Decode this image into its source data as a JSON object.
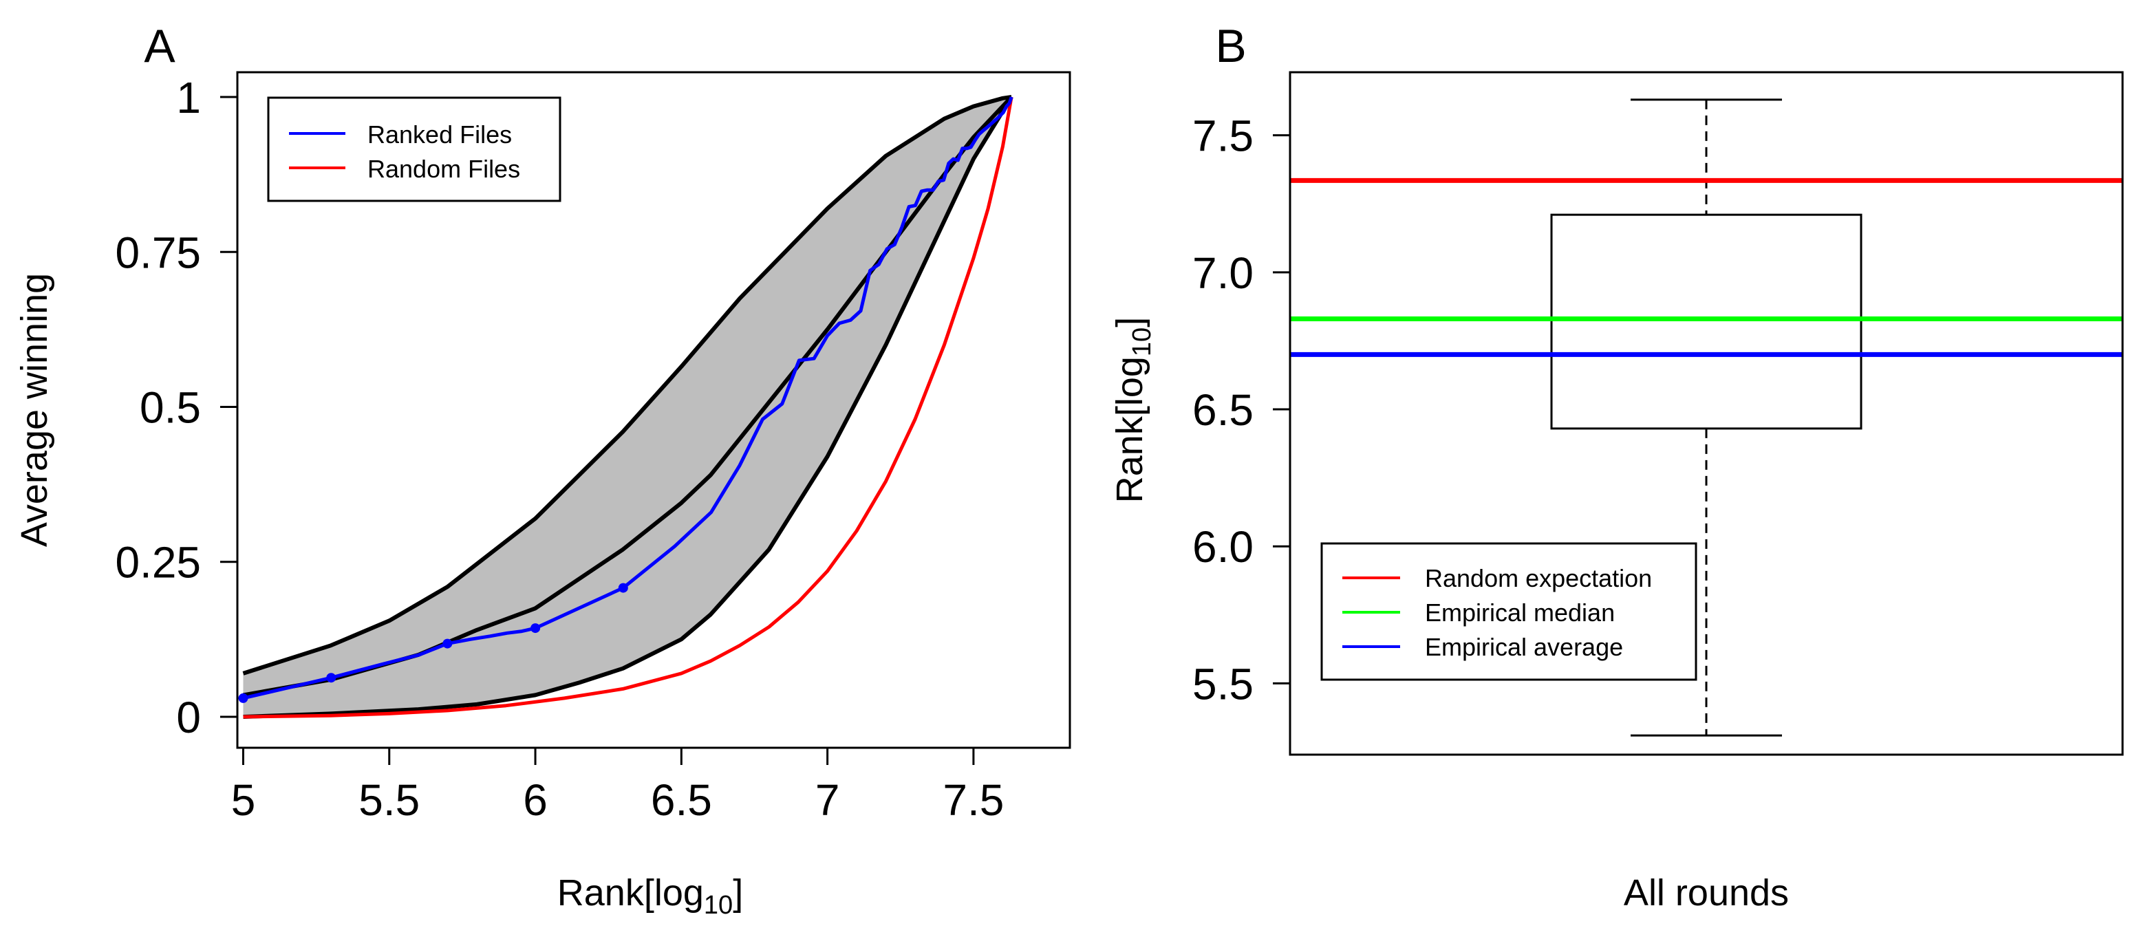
{
  "chart_data": [
    {
      "panel_label": "A",
      "type": "line",
      "xlabel": "Rank[log",
      "xlabel_sub": "10",
      "xlabel_close": "]",
      "ylabel": "Average winning",
      "xlim": [
        4.98,
        7.83
      ],
      "ylim": [
        -0.05,
        1.04
      ],
      "xticks": [
        5,
        5.5,
        6,
        6.5,
        7,
        7.5
      ],
      "xtick_labels": [
        "5",
        "5.5",
        "6",
        "6.5",
        "7",
        "7.5"
      ],
      "yticks": [
        0,
        0.25,
        0.5,
        0.75,
        1
      ],
      "ytick_labels": [
        "0",
        "0.25",
        "0.5",
        "0.75",
        "1"
      ],
      "legend": {
        "position": "top-left",
        "entries": [
          {
            "label": "Ranked Files",
            "color": "#0000ff"
          },
          {
            "label": "Random Files",
            "color": "#ff0000"
          }
        ]
      },
      "band": {
        "color": "#bebebe",
        "upper": {
          "x": [
            5.0,
            5.3,
            5.5,
            5.7,
            6.0,
            6.3,
            6.5,
            6.7,
            7.0,
            7.2,
            7.4,
            7.5,
            7.6,
            7.63
          ],
          "y": [
            0.07,
            0.115,
            0.155,
            0.21,
            0.32,
            0.46,
            0.565,
            0.675,
            0.82,
            0.905,
            0.965,
            0.985,
            0.998,
            1.0
          ]
        },
        "lower": {
          "x": [
            5.0,
            5.3,
            5.6,
            5.8,
            6.0,
            6.15,
            6.3,
            6.5,
            6.6,
            6.8,
            7.0,
            7.2,
            7.4,
            7.5,
            7.63
          ],
          "y": [
            0.0,
            0.005,
            0.012,
            0.02,
            0.035,
            0.055,
            0.078,
            0.125,
            0.165,
            0.27,
            0.42,
            0.6,
            0.8,
            0.9,
            1.0
          ]
        },
        "median": {
          "x": [
            5.0,
            5.3,
            5.6,
            5.8,
            6.0,
            6.3,
            6.5,
            6.6,
            7.0,
            7.2,
            7.4,
            7.5,
            7.63
          ],
          "y": [
            0.035,
            0.06,
            0.1,
            0.14,
            0.175,
            0.27,
            0.345,
            0.39,
            0.625,
            0.75,
            0.875,
            0.935,
            1.0
          ]
        }
      },
      "series": [
        {
          "name": "Ranked Files",
          "color": "#0000ff",
          "x": [
            5.0,
            5.301,
            5.477,
            5.602,
            5.699,
            5.778,
            5.845,
            5.903,
            5.954,
            6.0,
            6.301,
            6.477,
            6.602,
            6.699,
            6.778,
            6.845,
            6.903,
            6.954,
            7.0,
            7.041,
            7.079,
            7.114,
            7.146,
            7.176,
            7.204,
            7.23,
            7.255,
            7.279,
            7.301,
            7.322,
            7.342,
            7.362,
            7.38,
            7.398,
            7.415,
            7.431,
            7.447,
            7.462,
            7.477,
            7.491,
            7.505,
            7.519,
            7.531,
            7.544,
            7.556,
            7.568,
            7.58,
            7.591,
            7.602,
            7.613,
            7.623,
            7.63
          ],
          "y": [
            0.03,
            0.063,
            0.085,
            0.1,
            0.118,
            0.125,
            0.13,
            0.135,
            0.138,
            0.143,
            0.208,
            0.275,
            0.33,
            0.405,
            0.48,
            0.505,
            0.575,
            0.578,
            0.615,
            0.635,
            0.64,
            0.655,
            0.72,
            0.73,
            0.755,
            0.762,
            0.79,
            0.823,
            0.825,
            0.848,
            0.85,
            0.85,
            0.864,
            0.866,
            0.893,
            0.9,
            0.898,
            0.917,
            0.917,
            0.919,
            0.93,
            0.94,
            0.945,
            0.95,
            0.955,
            0.96,
            0.965,
            0.97,
            0.975,
            0.985,
            0.99,
            1.0
          ],
          "points_x": [
            5.0,
            5.301,
            5.699,
            6.0,
            6.301
          ],
          "points_y": [
            0.03,
            0.063,
            0.118,
            0.143,
            0.208
          ]
        },
        {
          "name": "Random Files",
          "color": "#ff0000",
          "x": [
            5.0,
            5.3,
            5.5,
            5.7,
            5.9,
            6.1,
            6.3,
            6.5,
            6.6,
            6.7,
            6.8,
            6.9,
            7.0,
            7.1,
            7.2,
            7.3,
            7.4,
            7.5,
            7.55,
            7.6,
            7.63
          ],
          "y": [
            0.0,
            0.002,
            0.005,
            0.01,
            0.018,
            0.03,
            0.045,
            0.07,
            0.09,
            0.115,
            0.145,
            0.185,
            0.235,
            0.3,
            0.38,
            0.48,
            0.6,
            0.74,
            0.82,
            0.92,
            1.0
          ]
        }
      ]
    },
    {
      "panel_label": "B",
      "type": "box",
      "xlabel": "All rounds",
      "ylabel": "Rank[log",
      "ylabel_sub": "10",
      "ylabel_close": "]",
      "ylim": [
        5.24,
        7.73
      ],
      "yticks": [
        5.5,
        6.0,
        6.5,
        7.0,
        7.5
      ],
      "ytick_labels": [
        "5.5",
        "6.0",
        "6.5",
        "7.0",
        "7.5"
      ],
      "box": {
        "whisker_low": 5.31,
        "q1": 6.43,
        "median": 6.83,
        "q3": 7.21,
        "whisker_high": 7.63
      },
      "hlines": [
        {
          "label": "Random expectation",
          "value": 7.335,
          "color": "#ff0000"
        },
        {
          "label": "Empirical median",
          "value": 6.83,
          "color": "#00ff00"
        },
        {
          "label": "Empirical average",
          "value": 6.7,
          "color": "#0000ff"
        }
      ],
      "legend": {
        "position": "bottom-left"
      }
    }
  ]
}
